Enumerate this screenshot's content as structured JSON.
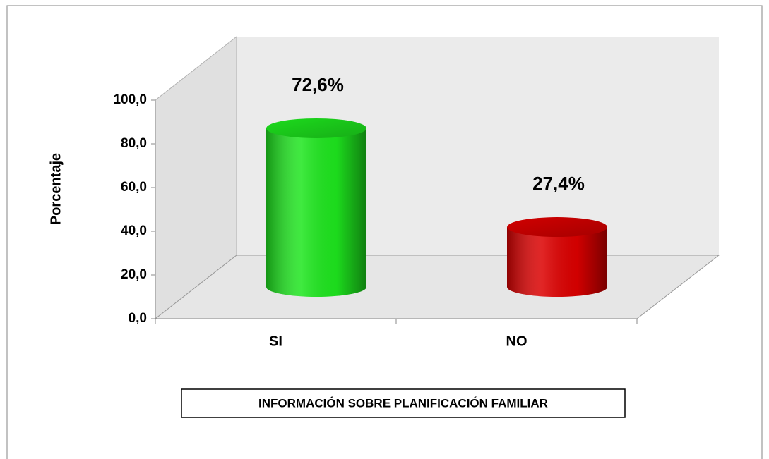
{
  "chart_data": {
    "type": "bar3d",
    "x_label": "INFORMACIÓN SOBRE PLANIFICACIÓN FAMILIAR",
    "y_label": "Porcentaje",
    "categories": [
      "SI",
      "NO"
    ],
    "values": [
      72.6,
      27.4
    ],
    "value_labels": [
      "72,6%",
      "27,4%"
    ],
    "colors": [
      "#1ee61e",
      "#dc0000"
    ],
    "ylim": [
      0,
      100
    ],
    "yticks": [
      {
        "value": 0,
        "label": "0,0"
      },
      {
        "value": 20,
        "label": "20,0"
      },
      {
        "value": 40,
        "label": "40,0"
      },
      {
        "value": 60,
        "label": "60,0"
      },
      {
        "value": 80,
        "label": "80,0"
      },
      {
        "value": 100,
        "label": "100,0"
      }
    ]
  }
}
